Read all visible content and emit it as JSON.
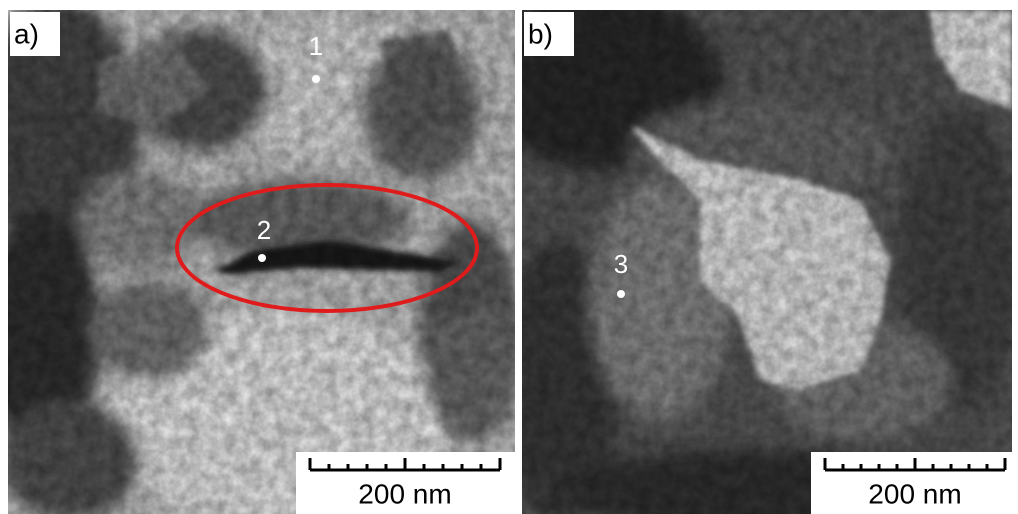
{
  "panels": [
    {
      "label": "a)",
      "points": [
        {
          "label": "1"
        },
        {
          "label": "2"
        }
      ],
      "scale_bar": "200 nm"
    },
    {
      "label": "b)",
      "points": [
        {
          "label": "3"
        }
      ],
      "scale_bar": "200 nm"
    }
  ]
}
